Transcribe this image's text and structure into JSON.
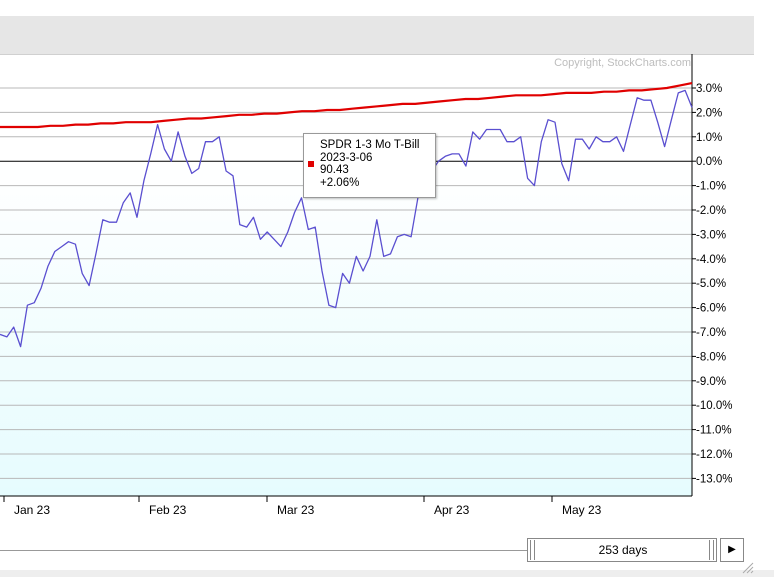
{
  "copyright": "Copyright, StockCharts.com",
  "tooltip": {
    "name": "SPDR 1-3 Mo T-Bill",
    "date": "2023-3-06",
    "value": "90.43",
    "change": "+2.06%",
    "swatch_color": "#e00000"
  },
  "range": {
    "label": "253 days",
    "play_icon": "play-triangle-icon"
  },
  "chart_data": {
    "type": "line",
    "y_ticks": [
      "3.0%",
      "2.0%",
      "1.0%",
      "0.0%",
      "-1.0%",
      "-2.0%",
      "-3.0%",
      "-4.0%",
      "-5.0%",
      "-6.0%",
      "-7.0%",
      "-8.0%",
      "-9.0%",
      "-10.0%",
      "-11.0%",
      "-12.0%",
      "-13.0%"
    ],
    "ylim": [
      -13.0,
      3.0
    ],
    "x_ticks": [
      "Jan 23",
      "Feb 23",
      "Mar 23",
      "Apr 23",
      "May 23"
    ],
    "series": [
      {
        "name": "SPDR 1-3 Mo T-Bill",
        "color": "#e00000",
        "values": [
          1.4,
          1.4,
          1.4,
          1.4,
          1.45,
          1.45,
          1.5,
          1.5,
          1.55,
          1.55,
          1.6,
          1.6,
          1.6,
          1.65,
          1.7,
          1.75,
          1.75,
          1.8,
          1.85,
          1.9,
          1.9,
          1.95,
          1.95,
          2.0,
          2.05,
          2.05,
          2.1,
          2.1,
          2.15,
          2.2,
          2.25,
          2.3,
          2.35,
          2.35,
          2.4,
          2.45,
          2.5,
          2.55,
          2.55,
          2.6,
          2.65,
          2.7,
          2.7,
          2.7,
          2.75,
          2.8,
          2.8,
          2.8,
          2.85,
          2.85,
          2.9,
          2.9,
          2.95,
          3.0,
          3.1,
          3.2
        ]
      },
      {
        "color": "#5a4fd0",
        "values": [
          -7.1,
          -7.2,
          -6.8,
          -7.6,
          -5.9,
          -5.8,
          -5.2,
          -4.3,
          -3.7,
          -3.5,
          -3.3,
          -3.4,
          -4.6,
          -5.1,
          -3.8,
          -2.4,
          -2.5,
          -2.5,
          -1.7,
          -1.3,
          -2.3,
          -0.8,
          0.3,
          1.5,
          0.5,
          0.0,
          1.2,
          0.2,
          -0.5,
          -0.3,
          0.8,
          0.8,
          1.0,
          -0.4,
          -0.6,
          -2.6,
          -2.7,
          -2.3,
          -3.2,
          -2.9,
          -3.2,
          -3.5,
          -2.9,
          -2.1,
          -1.5,
          -2.8,
          -2.7,
          -4.5,
          -5.9,
          -6.0,
          -4.6,
          -5.0,
          -3.9,
          -4.5,
          -3.9,
          -2.4,
          -3.9,
          -3.8,
          -3.1,
          -3.0,
          -3.1,
          -1.5,
          -0.5,
          -0.4,
          0.0,
          0.2,
          0.3,
          0.3,
          -0.2,
          1.2,
          0.9,
          1.3,
          1.3,
          1.3,
          0.8,
          0.8,
          1.0,
          -0.7,
          -1.0,
          0.8,
          1.7,
          1.6,
          -0.1,
          -0.8,
          0.9,
          0.9,
          0.5,
          1.0,
          0.8,
          0.8,
          1.0,
          0.4,
          1.5,
          2.6,
          2.5,
          2.5,
          1.6,
          0.6,
          1.7,
          2.8,
          2.9,
          2.2
        ]
      }
    ]
  }
}
